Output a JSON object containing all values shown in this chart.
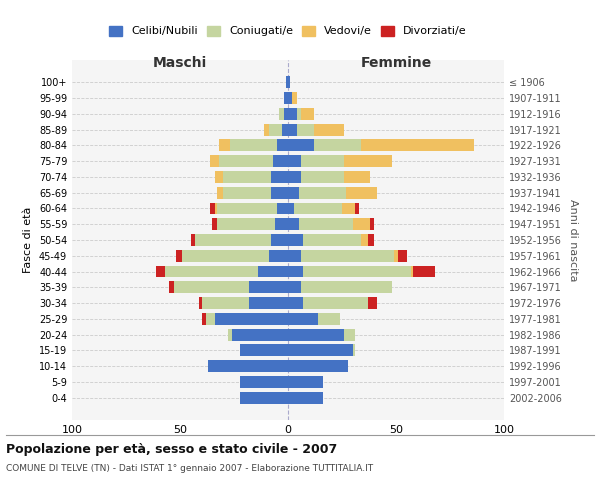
{
  "age_groups": [
    "100+",
    "95-99",
    "90-94",
    "85-89",
    "80-84",
    "75-79",
    "70-74",
    "65-69",
    "60-64",
    "55-59",
    "50-54",
    "45-49",
    "40-44",
    "35-39",
    "30-34",
    "25-29",
    "20-24",
    "15-19",
    "10-14",
    "5-9",
    "0-4"
  ],
  "birth_years": [
    "≤ 1906",
    "1907-1911",
    "1912-1916",
    "1917-1921",
    "1922-1926",
    "1927-1931",
    "1932-1936",
    "1937-1941",
    "1942-1946",
    "1947-1951",
    "1952-1956",
    "1957-1961",
    "1962-1966",
    "1967-1971",
    "1972-1976",
    "1977-1981",
    "1982-1986",
    "1987-1991",
    "1992-1996",
    "1997-2001",
    "2002-2006"
  ],
  "male": {
    "celibi": [
      1,
      2,
      2,
      3,
      5,
      7,
      8,
      8,
      5,
      6,
      8,
      9,
      14,
      18,
      18,
      34,
      26,
      22,
      37,
      22,
      22
    ],
    "coniugati": [
      0,
      0,
      2,
      6,
      22,
      25,
      22,
      22,
      28,
      27,
      35,
      40,
      43,
      35,
      22,
      4,
      2,
      0,
      0,
      0,
      0
    ],
    "vedovi": [
      0,
      0,
      0,
      2,
      5,
      4,
      4,
      3,
      1,
      0,
      0,
      0,
      0,
      0,
      0,
      0,
      0,
      0,
      0,
      0,
      0
    ],
    "divorziati": [
      0,
      0,
      0,
      0,
      0,
      0,
      0,
      0,
      2,
      2,
      2,
      3,
      4,
      2,
      1,
      2,
      0,
      0,
      0,
      0,
      0
    ]
  },
  "female": {
    "nubili": [
      1,
      2,
      4,
      4,
      12,
      6,
      6,
      5,
      3,
      5,
      7,
      6,
      7,
      6,
      7,
      14,
      26,
      30,
      28,
      16,
      16
    ],
    "coniugate": [
      0,
      0,
      2,
      8,
      22,
      20,
      20,
      22,
      22,
      25,
      27,
      43,
      50,
      42,
      30,
      10,
      5,
      1,
      0,
      0,
      0
    ],
    "vedove": [
      0,
      2,
      6,
      14,
      52,
      22,
      12,
      14,
      6,
      8,
      3,
      2,
      1,
      0,
      0,
      0,
      0,
      0,
      0,
      0,
      0
    ],
    "divorziate": [
      0,
      0,
      0,
      0,
      0,
      0,
      0,
      0,
      2,
      2,
      3,
      4,
      10,
      0,
      4,
      0,
      0,
      0,
      0,
      0,
      0
    ]
  },
  "colors": {
    "celibi": "#4472c4",
    "coniugati": "#c5d5a0",
    "vedovi": "#f0c060",
    "divorziati": "#cc2222"
  },
  "xlim": 100,
  "title": "Popolazione per età, sesso e stato civile - 2007",
  "subtitle": "COMUNE DI TELVE (TN) - Dati ISTAT 1° gennaio 2007 - Elaborazione TUTTITALIA.IT",
  "ylabel": "Fasce di età",
  "ylabel_right": "Anni di nascita",
  "xlabel_maschi": "Maschi",
  "xlabel_femmine": "Femmine",
  "bg_color": "#f5f5f5",
  "grid_color": "#cccccc"
}
